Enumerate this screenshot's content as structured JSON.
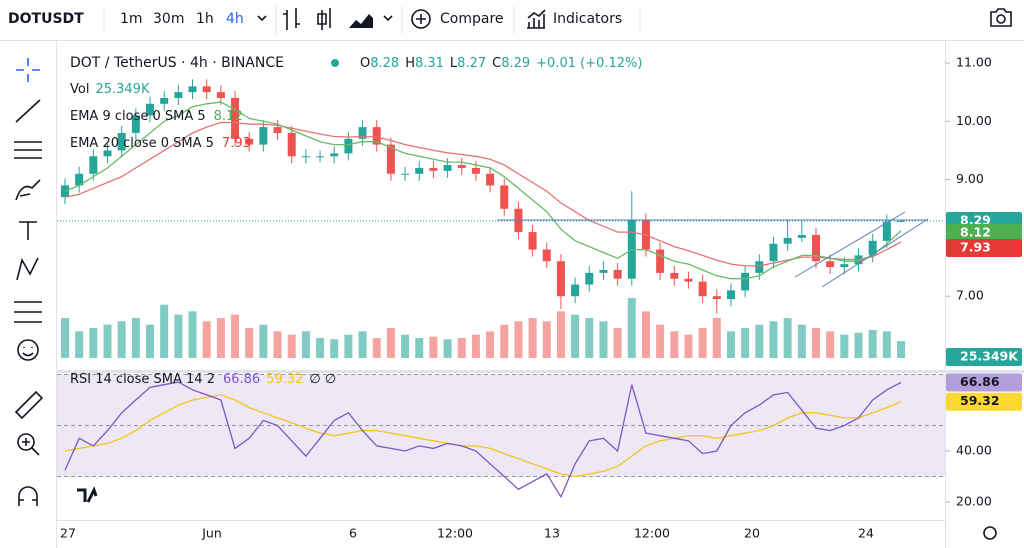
{
  "toolbar": {
    "symbol": "DOTUSDT",
    "intervals": [
      "1m",
      "30m",
      "1h",
      "4h"
    ],
    "compare": "Compare",
    "indicators": "Indicators"
  },
  "legend": {
    "title": "DOT / TetherUS · 4h · BINANCE",
    "ohlc_letters": [
      "O",
      "H",
      "L",
      "C"
    ],
    "change": "+0.01 (+0.12%)",
    "volume_label": "Vol",
    "volume_value": "25.349K",
    "ema9_label": "EMA 9 close 0 SMA 5",
    "ema20_label": "EMA 20 close 0 SMA 5",
    "rsi_label": "RSI 14 close SMA 14 2",
    "rsi_extra": "∅ ∅"
  },
  "chart": {
    "candles": [
      [
        8.7,
        9.02,
        8.58,
        8.9
      ],
      [
        8.9,
        9.22,
        8.78,
        9.1
      ],
      [
        9.1,
        9.52,
        8.98,
        9.4
      ],
      [
        9.4,
        9.62,
        9.28,
        9.5
      ],
      [
        9.5,
        9.92,
        9.38,
        9.8
      ],
      [
        9.8,
        10.22,
        9.68,
        10.1
      ],
      [
        10.1,
        10.42,
        9.98,
        10.3
      ],
      [
        10.3,
        10.52,
        10.18,
        10.4
      ],
      [
        10.4,
        10.62,
        10.28,
        10.5
      ],
      [
        10.5,
        10.72,
        10.38,
        10.6
      ],
      [
        10.6,
        10.72,
        10.38,
        10.5
      ],
      [
        10.5,
        10.62,
        10.28,
        10.4
      ],
      [
        10.4,
        10.52,
        9.58,
        9.7
      ],
      [
        9.7,
        9.82,
        9.48,
        9.6
      ],
      [
        9.6,
        10.02,
        9.48,
        9.9
      ],
      [
        9.9,
        10.02,
        9.68,
        9.8
      ],
      [
        9.8,
        9.92,
        9.28,
        9.4
      ],
      [
        9.4,
        9.52,
        9.28,
        9.4
      ],
      [
        9.4,
        9.5,
        9.3,
        9.4
      ],
      [
        9.4,
        9.57,
        9.28,
        9.45
      ],
      [
        9.45,
        9.82,
        9.33,
        9.7
      ],
      [
        9.7,
        10.02,
        9.58,
        9.9
      ],
      [
        9.9,
        10.02,
        9.48,
        9.6
      ],
      [
        9.6,
        9.72,
        8.98,
        9.1
      ],
      [
        9.1,
        9.22,
        8.98,
        9.1
      ],
      [
        9.1,
        9.32,
        8.98,
        9.2
      ],
      [
        9.2,
        9.32,
        9.03,
        9.15
      ],
      [
        9.15,
        9.37,
        9.03,
        9.25
      ],
      [
        9.25,
        9.37,
        9.08,
        9.2
      ],
      [
        9.2,
        9.32,
        8.98,
        9.1
      ],
      [
        9.1,
        9.22,
        8.78,
        8.9
      ],
      [
        8.9,
        9.02,
        8.38,
        8.5
      ],
      [
        8.5,
        8.62,
        7.98,
        8.1
      ],
      [
        8.1,
        8.22,
        7.68,
        7.8
      ],
      [
        7.8,
        7.92,
        7.48,
        7.6
      ],
      [
        7.6,
        7.72,
        6.78,
        7.0
      ],
      [
        7.0,
        7.32,
        6.88,
        7.2
      ],
      [
        7.2,
        7.52,
        7.08,
        7.4
      ],
      [
        7.4,
        7.6,
        7.28,
        7.45
      ],
      [
        7.45,
        7.57,
        7.18,
        7.3
      ],
      [
        7.3,
        8.8,
        7.18,
        8.3
      ],
      [
        8.3,
        8.42,
        7.68,
        7.8
      ],
      [
        7.8,
        7.92,
        7.28,
        7.4
      ],
      [
        7.4,
        7.52,
        7.18,
        7.3
      ],
      [
        7.3,
        7.42,
        7.13,
        7.25
      ],
      [
        7.25,
        7.37,
        6.88,
        7.0
      ],
      [
        7.0,
        7.12,
        6.7,
        6.95
      ],
      [
        6.95,
        7.22,
        6.83,
        7.1
      ],
      [
        7.1,
        7.52,
        6.98,
        7.4
      ],
      [
        7.4,
        7.72,
        7.28,
        7.6
      ],
      [
        7.6,
        8.02,
        7.48,
        7.9
      ],
      [
        7.9,
        8.3,
        7.78,
        8.0
      ],
      [
        8.0,
        8.3,
        7.93,
        8.05
      ],
      [
        8.05,
        8.17,
        7.48,
        7.6
      ],
      [
        7.6,
        7.72,
        7.38,
        7.5
      ],
      [
        7.5,
        7.67,
        7.38,
        7.55
      ],
      [
        7.55,
        7.82,
        7.43,
        7.7
      ],
      [
        7.7,
        8.07,
        7.58,
        7.95
      ],
      [
        7.95,
        8.4,
        7.83,
        8.28
      ],
      [
        8.28,
        8.31,
        8.27,
        8.29
      ]
    ],
    "ema9": [
      8.8,
      8.9,
      9.05,
      9.2,
      9.4,
      9.6,
      9.8,
      10.0,
      10.1,
      10.25,
      10.3,
      10.33,
      10.2,
      10.05,
      10.0,
      9.95,
      9.85,
      9.75,
      9.65,
      9.6,
      9.6,
      9.65,
      9.65,
      9.55,
      9.45,
      9.4,
      9.35,
      9.3,
      9.3,
      9.25,
      9.2,
      9.05,
      8.85,
      8.65,
      8.45,
      8.15,
      7.95,
      7.85,
      7.75,
      7.65,
      7.8,
      7.8,
      7.7,
      7.6,
      7.55,
      7.45,
      7.35,
      7.3,
      7.3,
      7.35,
      7.5,
      7.6,
      7.7,
      7.7,
      7.65,
      7.6,
      7.6,
      7.7,
      7.9,
      8.12
    ],
    "ema20": [
      8.7,
      8.75,
      8.85,
      8.95,
      9.05,
      9.2,
      9.35,
      9.5,
      9.65,
      9.8,
      9.9,
      9.98,
      9.98,
      9.95,
      9.95,
      9.93,
      9.88,
      9.83,
      9.78,
      9.74,
      9.73,
      9.74,
      9.73,
      9.67,
      9.6,
      9.55,
      9.5,
      9.46,
      9.43,
      9.4,
      9.35,
      9.25,
      9.1,
      8.95,
      8.8,
      8.6,
      8.45,
      8.3,
      8.2,
      8.1,
      8.1,
      8.05,
      7.95,
      7.85,
      7.78,
      7.7,
      7.62,
      7.55,
      7.52,
      7.52,
      7.57,
      7.62,
      7.67,
      7.67,
      7.65,
      7.63,
      7.63,
      7.68,
      7.8,
      7.93
    ],
    "volume": [
      60,
      40,
      45,
      50,
      55,
      60,
      50,
      80,
      65,
      70,
      55,
      60,
      65,
      45,
      50,
      40,
      35,
      40,
      30,
      28,
      35,
      40,
      30,
      45,
      35,
      30,
      32,
      28,
      30,
      35,
      40,
      50,
      55,
      60,
      55,
      70,
      65,
      60,
      55,
      45,
      90,
      70,
      50,
      40,
      35,
      45,
      60,
      40,
      45,
      50,
      55,
      60,
      50,
      45,
      40,
      35,
      38,
      42,
      40,
      25.349
    ],
    "yticks": [
      {
        "value": 11,
        "label": "11.00"
      },
      {
        "value": 10,
        "label": "10.00"
      },
      {
        "value": 9,
        "label": "9.00"
      },
      {
        "value": 7,
        "label": "7.00"
      }
    ],
    "rsi": [
      32.5,
      45,
      42,
      48,
      55,
      60,
      65,
      66,
      67,
      64,
      62,
      60,
      41,
      45,
      52,
      50,
      44,
      38,
      45,
      52,
      55,
      48,
      42,
      41,
      40,
      42,
      41,
      43,
      42,
      40,
      35,
      30,
      25,
      28,
      31,
      22,
      35,
      44,
      45,
      40,
      66,
      47,
      46,
      45,
      44,
      39,
      40,
      50,
      55,
      58,
      62,
      63,
      56,
      49,
      48,
      50,
      53,
      60,
      64,
      66.86
    ],
    "rsi_sma": [
      40,
      41,
      42,
      43,
      45,
      48,
      52,
      55,
      58,
      60,
      61,
      62,
      60,
      57,
      55,
      53,
      51,
      49,
      47,
      46,
      47,
      48,
      48,
      47,
      46,
      45,
      44,
      43,
      42,
      42,
      41,
      39,
      37,
      35,
      33,
      31,
      30,
      31,
      32,
      34,
      38,
      42,
      44,
      45,
      46,
      46,
      45,
      46,
      47,
      48,
      50,
      53,
      55,
      55,
      54,
      53,
      53,
      55,
      57,
      59.32
    ],
    "rsi_ticks": [
      {
        "value": 40,
        "label": "40.00"
      },
      {
        "value": 20,
        "label": "20.00"
      }
    ],
    "rsi_bands": [
      70,
      50,
      30
    ],
    "time_labels": [
      "27",
      "Jun",
      "6",
      "12:00",
      "13",
      "12:00",
      "20",
      "24"
    ]
  }
}
